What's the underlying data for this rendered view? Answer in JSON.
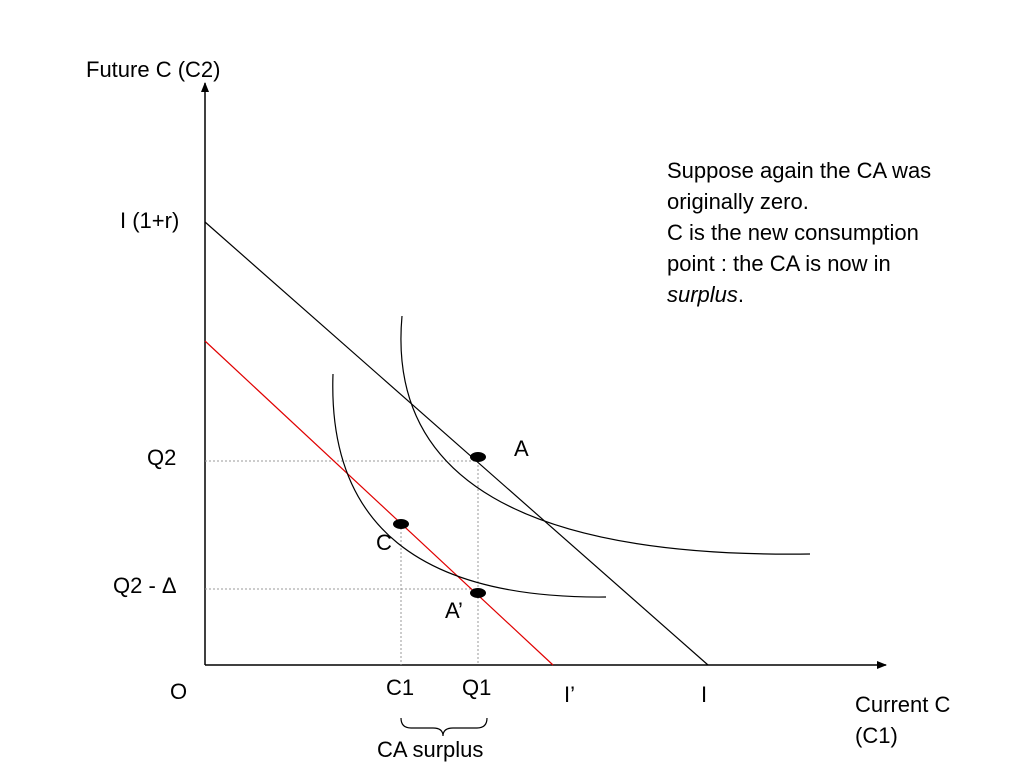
{
  "labels": {
    "y_axis": "Future C (C2)",
    "x_axis_line1": "Current C",
    "x_axis_line2": "(C1)",
    "origin": "O",
    "y_intercept": "I (1+r)",
    "q2": "Q2",
    "q2_minus_delta": "Q2 - Δ",
    "c1": "C1",
    "q1": "Q1",
    "i_prime": "I’",
    "i": "I",
    "point_a": "A",
    "point_c": "C",
    "point_a_prime": "A’",
    "brace_label": "CA surplus"
  },
  "note": {
    "line1": "Suppose again the CA was",
    "line2": "originally zero.",
    "line3": "C is the new consumption",
    "line4a": "point : the CA is now in",
    "line4b_italic": "surplus",
    "line4c": "."
  },
  "colors": {
    "axis": "#000000",
    "budget_line": "#000000",
    "new_budget_line": "#e00000",
    "guide": "#999999"
  }
}
